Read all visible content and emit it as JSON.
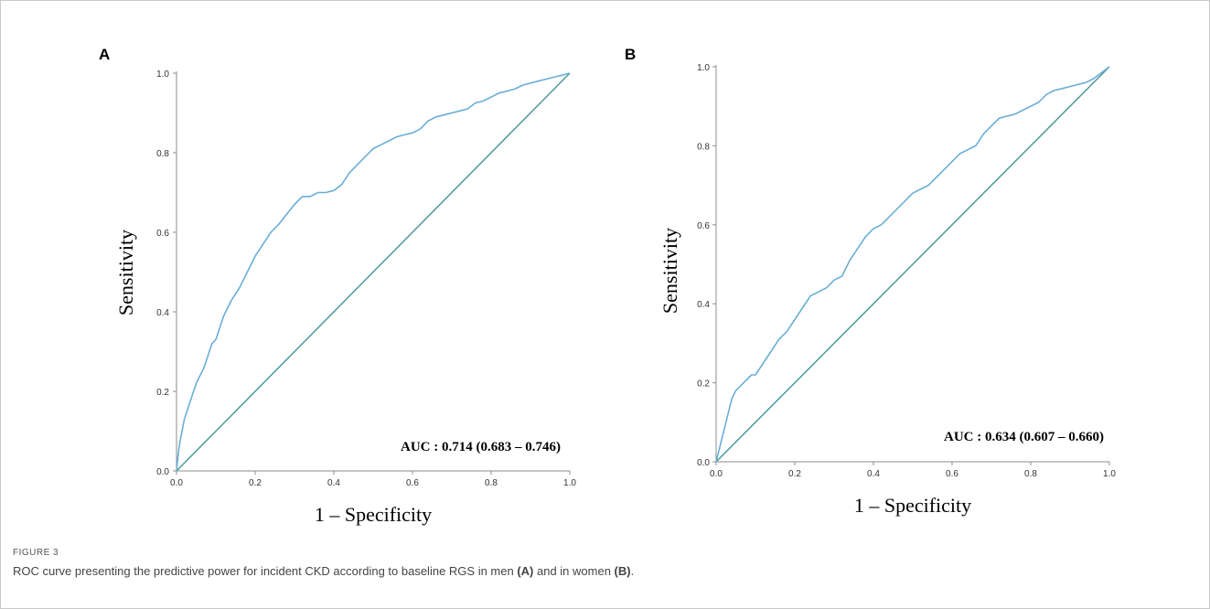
{
  "figure": {
    "label": "FIGURE 3",
    "caption": {
      "pre": "ROC curve presenting the predictive power for incident CKD according to baseline RGS in men ",
      "ref_a": "(A)",
      "mid": " and in women ",
      "ref_b": "(B)",
      "post": "."
    }
  },
  "colors": {
    "roc": "#6aaed6",
    "reference": "#4a9a9a",
    "axis": "#8c8c8c"
  },
  "chart_data": [
    {
      "type": "line",
      "panel": "A",
      "xlabel": "1 – Specificity",
      "ylabel": "Sensitivity",
      "xlim": [
        0,
        1
      ],
      "ylim": [
        0,
        1
      ],
      "xticks": [
        "0.0",
        "0.2",
        "0.4",
        "0.6",
        "0.8",
        "1.0"
      ],
      "yticks": [
        "0.0",
        "0.2",
        "0.4",
        "0.6",
        "0.8",
        "1.0"
      ],
      "annotation": "AUC : 0.714 (0.683 – 0.746)",
      "series": [
        {
          "x": [
            0,
            0.005,
            0.01,
            0.02,
            0.03,
            0.04,
            0.05,
            0.06,
            0.07,
            0.08,
            0.09,
            0.1,
            0.12,
            0.14,
            0.16,
            0.18,
            0.2,
            0.22,
            0.24,
            0.26,
            0.28,
            0.3,
            0.32,
            0.34,
            0.36,
            0.38,
            0.4,
            0.42,
            0.44,
            0.46,
            0.48,
            0.5,
            0.52,
            0.54,
            0.56,
            0.58,
            0.6,
            0.62,
            0.64,
            0.66,
            0.68,
            0.7,
            0.72,
            0.74,
            0.76,
            0.78,
            0.8,
            0.82,
            0.84,
            0.86,
            0.88,
            0.9,
            0.92,
            0.94,
            0.96,
            0.98,
            1.0
          ],
          "y": [
            0,
            0.05,
            0.08,
            0.13,
            0.16,
            0.19,
            0.22,
            0.24,
            0.26,
            0.29,
            0.32,
            0.33,
            0.39,
            0.43,
            0.46,
            0.5,
            0.54,
            0.57,
            0.6,
            0.62,
            0.645,
            0.67,
            0.69,
            0.69,
            0.7,
            0.7,
            0.705,
            0.72,
            0.75,
            0.77,
            0.79,
            0.81,
            0.82,
            0.83,
            0.84,
            0.845,
            0.85,
            0.86,
            0.88,
            0.89,
            0.895,
            0.9,
            0.905,
            0.91,
            0.925,
            0.93,
            0.94,
            0.95,
            0.955,
            0.96,
            0.97,
            0.975,
            0.98,
            0.985,
            0.99,
            0.995,
            1.0
          ]
        },
        {
          "x": [
            0,
            1
          ],
          "y": [
            0,
            1
          ]
        }
      ]
    },
    {
      "type": "line",
      "panel": "B",
      "xlabel": "1 – Specificity",
      "ylabel": "Sensitivity",
      "xlim": [
        0,
        1
      ],
      "ylim": [
        0,
        1
      ],
      "xticks": [
        "0.0",
        "0.2",
        "0.4",
        "0.6",
        "0.8",
        "1.0"
      ],
      "yticks": [
        "0.0",
        "0.2",
        "0.4",
        "0.6",
        "0.8",
        "1.0"
      ],
      "annotation": "AUC : 0.634 (0.607 – 0.660)",
      "series": [
        {
          "x": [
            0,
            0.01,
            0.02,
            0.03,
            0.04,
            0.05,
            0.06,
            0.07,
            0.08,
            0.09,
            0.1,
            0.12,
            0.14,
            0.16,
            0.18,
            0.2,
            0.22,
            0.24,
            0.26,
            0.28,
            0.3,
            0.32,
            0.34,
            0.36,
            0.38,
            0.4,
            0.42,
            0.44,
            0.46,
            0.48,
            0.5,
            0.52,
            0.54,
            0.56,
            0.58,
            0.6,
            0.62,
            0.64,
            0.66,
            0.68,
            0.7,
            0.72,
            0.74,
            0.76,
            0.78,
            0.8,
            0.82,
            0.84,
            0.86,
            0.88,
            0.9,
            0.92,
            0.94,
            0.96,
            0.98,
            1.0
          ],
          "y": [
            0,
            0.04,
            0.08,
            0.12,
            0.16,
            0.18,
            0.19,
            0.2,
            0.21,
            0.22,
            0.22,
            0.25,
            0.28,
            0.31,
            0.33,
            0.36,
            0.39,
            0.42,
            0.43,
            0.44,
            0.46,
            0.47,
            0.51,
            0.54,
            0.57,
            0.59,
            0.6,
            0.62,
            0.64,
            0.66,
            0.68,
            0.69,
            0.7,
            0.72,
            0.74,
            0.76,
            0.78,
            0.79,
            0.8,
            0.83,
            0.85,
            0.87,
            0.875,
            0.88,
            0.89,
            0.9,
            0.91,
            0.93,
            0.94,
            0.945,
            0.95,
            0.955,
            0.96,
            0.97,
            0.985,
            1.0
          ]
        },
        {
          "x": [
            0,
            1
          ],
          "y": [
            0,
            1
          ]
        }
      ]
    }
  ]
}
